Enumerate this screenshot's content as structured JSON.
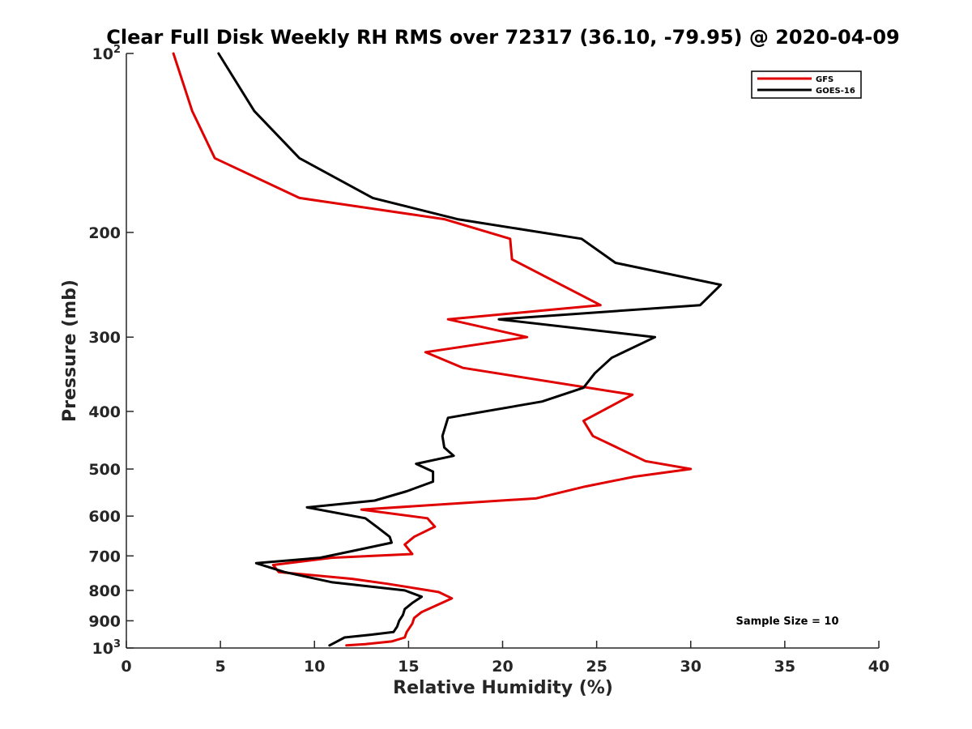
{
  "chart_data": {
    "type": "line",
    "title": "Clear Full Disk Weekly RH RMS over 72317 (36.10, -79.95) @ 2020-04-09",
    "xlabel": "Relative Humidity (%)",
    "ylabel": "Pressure (mb)",
    "xlim": [
      0,
      40
    ],
    "ylim": [
      100,
      1000
    ],
    "y_scale": "log",
    "y_reversed": true,
    "x_ticks": [
      0,
      5,
      10,
      15,
      20,
      25,
      30,
      35,
      40
    ],
    "y_ticks": [
      {
        "value": 100,
        "label": "10",
        "exp": "2"
      },
      {
        "value": 200,
        "label": "200",
        "exp": ""
      },
      {
        "value": 300,
        "label": "300",
        "exp": ""
      },
      {
        "value": 400,
        "label": "400",
        "exp": ""
      },
      {
        "value": 500,
        "label": "500",
        "exp": ""
      },
      {
        "value": 600,
        "label": "600",
        "exp": ""
      },
      {
        "value": 700,
        "label": "700",
        "exp": ""
      },
      {
        "value": 800,
        "label": "800",
        "exp": ""
      },
      {
        "value": 900,
        "label": "900",
        "exp": ""
      },
      {
        "value": 1000,
        "label": "10",
        "exp": "3"
      }
    ],
    "grid": false,
    "legend_position": "top-right",
    "annotation": "Sample Size = 10",
    "series": [
      {
        "name": "GFS",
        "color": "#e00000",
        "points": [
          [
            2.5,
            100
          ],
          [
            3.5,
            125
          ],
          [
            4.7,
            150
          ],
          [
            9.2,
            175
          ],
          [
            16.9,
            190
          ],
          [
            20.4,
            205
          ],
          [
            20.5,
            222
          ],
          [
            25.2,
            265
          ],
          [
            17.1,
            280
          ],
          [
            21.3,
            300
          ],
          [
            15.9,
            318
          ],
          [
            17.9,
            338
          ],
          [
            26.9,
            375
          ],
          [
            24.3,
            415
          ],
          [
            24.8,
            440
          ],
          [
            27.6,
            485
          ],
          [
            30.0,
            500
          ],
          [
            27.0,
            515
          ],
          [
            24.4,
            535
          ],
          [
            21.8,
            560
          ],
          [
            12.5,
            585
          ],
          [
            16.0,
            605
          ],
          [
            16.4,
            625
          ],
          [
            15.3,
            650
          ],
          [
            14.8,
            670
          ],
          [
            15.2,
            695
          ],
          [
            10.9,
            705
          ],
          [
            7.8,
            725
          ],
          [
            8.1,
            745
          ],
          [
            12.0,
            765
          ],
          [
            13.9,
            780
          ],
          [
            16.6,
            805
          ],
          [
            17.3,
            825
          ],
          [
            16.4,
            850
          ],
          [
            15.7,
            870
          ],
          [
            15.3,
            890
          ],
          [
            15.2,
            910
          ],
          [
            14.9,
            940
          ],
          [
            14.8,
            960
          ],
          [
            14.1,
            975
          ],
          [
            12.7,
            985
          ],
          [
            11.7,
            990
          ]
        ]
      },
      {
        "name": "GOES-16",
        "color": "#000000",
        "points": [
          [
            4.9,
            100
          ],
          [
            6.8,
            125
          ],
          [
            9.2,
            150
          ],
          [
            13.1,
            175
          ],
          [
            17.6,
            190
          ],
          [
            24.2,
            205
          ],
          [
            26.0,
            225
          ],
          [
            31.6,
            245
          ],
          [
            30.5,
            265
          ],
          [
            19.8,
            280
          ],
          [
            28.1,
            300
          ],
          [
            25.8,
            325
          ],
          [
            24.9,
            345
          ],
          [
            24.3,
            365
          ],
          [
            22.1,
            385
          ],
          [
            17.1,
            410
          ],
          [
            16.8,
            440
          ],
          [
            16.9,
            460
          ],
          [
            17.4,
            475
          ],
          [
            15.4,
            490
          ],
          [
            16.3,
            505
          ],
          [
            16.3,
            525
          ],
          [
            14.9,
            545
          ],
          [
            13.2,
            565
          ],
          [
            9.6,
            580
          ],
          [
            12.7,
            605
          ],
          [
            13.3,
            625
          ],
          [
            14.0,
            650
          ],
          [
            14.1,
            665
          ],
          [
            12.2,
            685
          ],
          [
            10.3,
            705
          ],
          [
            6.9,
            720
          ],
          [
            8.4,
            745
          ],
          [
            10.9,
            775
          ],
          [
            14.8,
            800
          ],
          [
            15.7,
            820
          ],
          [
            15.2,
            840
          ],
          [
            14.8,
            860
          ],
          [
            14.7,
            880
          ],
          [
            14.5,
            900
          ],
          [
            14.4,
            920
          ],
          [
            14.2,
            940
          ],
          [
            13.0,
            950
          ],
          [
            11.6,
            960
          ],
          [
            11.2,
            975
          ],
          [
            10.8,
            990
          ]
        ]
      }
    ]
  }
}
